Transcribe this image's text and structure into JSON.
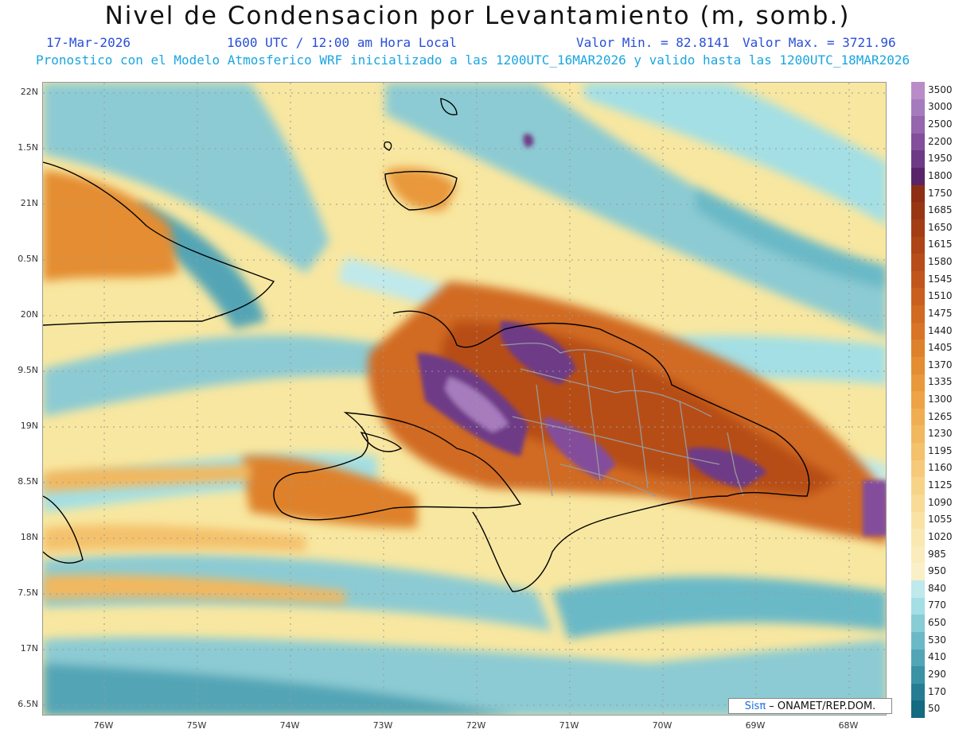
{
  "header": {
    "title": "Nivel de Condensacion por Levantamiento (m, somb.)",
    "date": "17-Mar-2026",
    "time": "1600 UTC / 12:00 am Hora Local",
    "min_label": "Valor Min. = 82.8141",
    "max_label": "Valor Max. = 3721.96",
    "subtitle": "Pronostico con el Modelo Atmosferico WRF inicializado a las 1200UTC_16MAR2026 y valido hasta las  1200UTC_18MAR2026"
  },
  "map": {
    "lat_labels": [
      "22N",
      "1.5N",
      "21N",
      "0.5N",
      "20N",
      "9.5N",
      "19N",
      "8.5N",
      "18N",
      "7.5N",
      "17N",
      "6.5N"
    ],
    "lon_labels": [
      "76W",
      "75W",
      "74W",
      "73W",
      "72W",
      "71W",
      "70W",
      "69W",
      "68W"
    ],
    "ocean_color": "#f8e7a0",
    "coast_color": "#000000",
    "border_color": "#999999"
  },
  "legend": {
    "labels": [
      "3500",
      "3000",
      "2500",
      "2200",
      "1950",
      "1800",
      "1750",
      "1685",
      "1650",
      "1615",
      "1580",
      "1545",
      "1510",
      "1475",
      "1440",
      "1405",
      "1370",
      "1335",
      "1300",
      "1265",
      "1230",
      "1195",
      "1160",
      "1125",
      "1090",
      "1055",
      "1020",
      "985",
      "950",
      "840",
      "770",
      "650",
      "530",
      "410",
      "290",
      "170",
      "50"
    ],
    "colors": [
      "#b98cc8",
      "#a67bbd",
      "#9565ad",
      "#834e9c",
      "#6e3a86",
      "#5a2568",
      "#8c2f14",
      "#983614",
      "#a33d15",
      "#ad4516",
      "#b74e19",
      "#c0561c",
      "#c9601f",
      "#d16a23",
      "#d87527",
      "#de812c",
      "#e48d33",
      "#e9983b",
      "#eda346",
      "#f0ae52",
      "#f2b85f",
      "#f4c16c",
      "#f6ca7a",
      "#f7d388",
      "#f8db96",
      "#f9e2a3",
      "#f9e8b0",
      "#faecbc",
      "#f9f0c7",
      "#bfe9ec",
      "#a3dfe5",
      "#88ccd6",
      "#6bb9c7",
      "#52a5b6",
      "#3a92a5",
      "#267d93",
      "#146a80"
    ]
  },
  "credit": {
    "sis": "Sisπ",
    "text": " – ONAMET/REP.DOM."
  }
}
